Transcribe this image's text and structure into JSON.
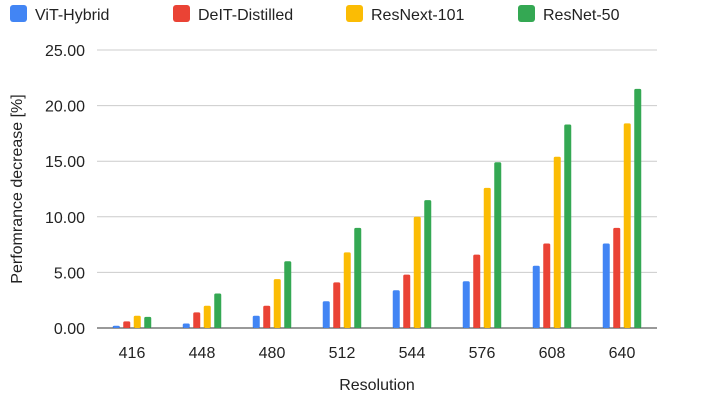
{
  "chart_data": {
    "type": "bar",
    "title": "",
    "xlabel": "Resolution",
    "ylabel": "Perfomrance decrease [%]",
    "ylim": [
      0,
      25
    ],
    "yticks": [
      "0.00",
      "5.00",
      "10.00",
      "15.00",
      "20.00",
      "25.00"
    ],
    "yticks_values": [
      0,
      5,
      10,
      15,
      20,
      25
    ],
    "grid": true,
    "legend_position": "top-left",
    "categories": [
      "416",
      "448",
      "480",
      "512",
      "544",
      "576",
      "608",
      "640"
    ],
    "series": [
      {
        "name": "ViT-Hybrid",
        "color": "#4285F4",
        "values": [
          0.2,
          0.4,
          1.1,
          2.4,
          3.4,
          4.2,
          5.6,
          7.6
        ]
      },
      {
        "name": "DeIT-Distilled",
        "color": "#EA4335",
        "values": [
          0.6,
          1.4,
          2.0,
          4.1,
          4.8,
          6.6,
          7.6,
          9.0
        ]
      },
      {
        "name": "ResNext-101",
        "color": "#FBBC04",
        "values": [
          1.1,
          2.0,
          4.4,
          6.8,
          10.0,
          12.6,
          15.4,
          18.4
        ]
      },
      {
        "name": "ResNet-50",
        "color": "#34A853",
        "values": [
          1.0,
          3.1,
          6.0,
          9.0,
          11.5,
          14.9,
          18.3,
          21.5
        ]
      }
    ]
  }
}
